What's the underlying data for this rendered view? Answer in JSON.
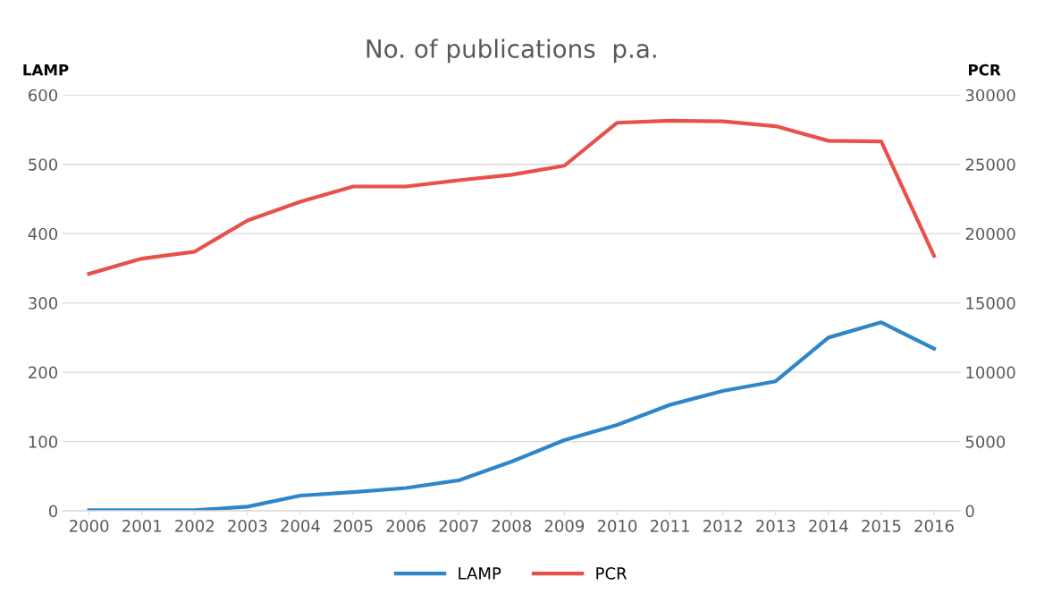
{
  "chart_data": {
    "type": "line",
    "title": "No. of publications  p.a.",
    "ylabel": "LAMP",
    "y2label": "PCR",
    "categories": [
      "2000",
      "2001",
      "2002",
      "2003",
      "2004",
      "2005",
      "2006",
      "2007",
      "2008",
      "2009",
      "2010",
      "2011",
      "2012",
      "2013",
      "2014",
      "2015",
      "2016"
    ],
    "series": [
      {
        "name": "LAMP",
        "color": "#2e86c9",
        "values": [
          1,
          1,
          1,
          6,
          22,
          27,
          33,
          44,
          71,
          102,
          124,
          153,
          173,
          187,
          250,
          272,
          234
        ]
      },
      {
        "name": "PCR",
        "color": "#e8504a",
        "axis": "y2",
        "values": [
          17100,
          18200,
          18700,
          20950,
          22300,
          23400,
          23400,
          23850,
          24250,
          24900,
          28000,
          28150,
          28100,
          27750,
          26700,
          26650,
          18400
        ]
      }
    ],
    "ylim": [
      0,
      600
    ],
    "yticks": [
      0,
      100,
      200,
      300,
      400,
      500,
      600
    ],
    "y2lim": [
      0,
      30000
    ],
    "y2ticks": [
      0,
      5000,
      10000,
      15000,
      20000,
      25000,
      30000
    ],
    "grid": "y",
    "legend": "bottom",
    "marker": "none",
    "line_style": "solid"
  }
}
